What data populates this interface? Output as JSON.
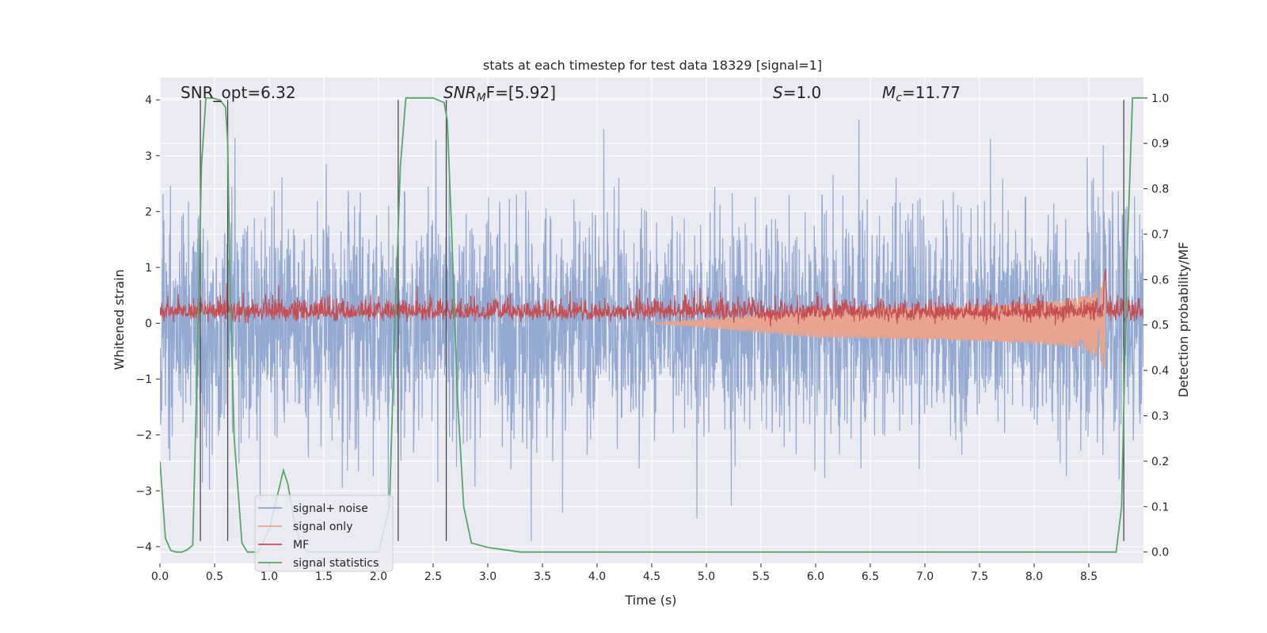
{
  "chart_data": {
    "type": "line",
    "title": "stats at each timestep for test data 18329 [signal=1]",
    "xlabel": "Time (s)",
    "ylabel": "Whitened strain",
    "ylabel_right": "Detection probability/MF",
    "xlim": [
      0.0,
      9.0
    ],
    "ylim": [
      -4.3,
      4.4
    ],
    "ylim_right": [
      -0.025,
      1.045
    ],
    "xticks": [
      0.0,
      0.5,
      1.0,
      1.5,
      2.0,
      2.5,
      3.0,
      3.5,
      4.0,
      4.5,
      5.0,
      5.5,
      6.0,
      6.5,
      7.0,
      7.5,
      8.0,
      8.5
    ],
    "xtick_labels": [
      "0.0",
      "0.5",
      "1.0",
      "1.5",
      "2.0",
      "2.5",
      "3.0",
      "3.5",
      "4.0",
      "4.5",
      "5.0",
      "5.5",
      "6.0",
      "6.5",
      "7.0",
      "7.5",
      "8.0",
      "8.5"
    ],
    "yticks": [
      -4,
      -3,
      -2,
      -1,
      0,
      1,
      2,
      3,
      4
    ],
    "ytick_labels": [
      "−4",
      "−3",
      "−2",
      "−1",
      "0",
      "1",
      "2",
      "3",
      "4"
    ],
    "yticks_right": [
      0.0,
      0.1,
      0.2,
      0.3,
      0.4,
      0.5,
      0.6,
      0.7,
      0.8,
      0.9,
      1.0
    ],
    "ytick_labels_right": [
      "0.0",
      "0.1",
      "0.2",
      "0.3",
      "0.4",
      "0.5",
      "0.6",
      "0.7",
      "0.8",
      "0.9",
      "1.0"
    ],
    "grid": true,
    "legend_position": "lower-left",
    "annotations": {
      "snr_opt": "SNR_opt=6.32",
      "snr_mf_main": "SNR",
      "snr_mf_sub": "M",
      "snr_mf_rest": "F=[5.92]",
      "s_main": "S",
      "s_rest": "=1.0",
      "mc_main": "M",
      "mc_sub": "c",
      "mc_rest": "=11.77"
    },
    "series": [
      {
        "name": "signal+ noise",
        "color": "#8fa5cf",
        "axis": "left",
        "kind": "noise",
        "amplitude_sigma": 1.0
      },
      {
        "name": "signal only",
        "color": "#e8a48c",
        "axis": "left",
        "kind": "chirp",
        "end_time": 8.65,
        "peak_amplitude": 0.9
      },
      {
        "name": "MF",
        "color": "#c44e52",
        "axis": "left",
        "kind": "mf",
        "mean": 0.2,
        "peak_time": 8.65,
        "peak_value": 1.0
      },
      {
        "name": "signal statistics",
        "color": "#55a868",
        "axis": "right",
        "x": [
          0.0,
          0.05,
          0.1,
          0.15,
          0.2,
          0.25,
          0.3,
          0.35,
          0.38,
          0.42,
          0.48,
          0.55,
          0.6,
          0.62,
          0.64,
          0.68,
          0.75,
          0.8,
          0.9,
          1.0,
          1.05,
          1.1,
          1.13,
          1.17,
          1.22,
          1.28,
          1.35,
          1.5,
          2.0,
          2.1,
          2.15,
          2.2,
          2.25,
          2.3,
          2.5,
          2.6,
          2.63,
          2.67,
          2.72,
          2.78,
          2.85,
          3.0,
          3.3,
          4.0,
          5.0,
          6.0,
          7.0,
          8.0,
          8.75,
          8.8,
          8.85,
          8.9,
          9.0
        ],
        "y": [
          0.2,
          0.03,
          0.003,
          0.0,
          0.0,
          0.005,
          0.015,
          0.5,
          0.85,
          1.0,
          1.0,
          0.995,
          0.98,
          0.9,
          0.6,
          0.25,
          0.02,
          0.0,
          0.0,
          0.05,
          0.1,
          0.15,
          0.18,
          0.15,
          0.08,
          0.02,
          0.0,
          0.0,
          0.0,
          0.1,
          0.5,
          0.85,
          1.0,
          1.0,
          1.0,
          0.99,
          0.95,
          0.7,
          0.35,
          0.1,
          0.02,
          0.01,
          0.0,
          0.0,
          0.0,
          0.0,
          0.0,
          0.0,
          0.0,
          0.1,
          0.65,
          1.0,
          1.0
        ]
      }
    ],
    "vertical_lines": [
      0.37,
      0.62,
      2.18,
      2.62,
      8.82
    ]
  }
}
